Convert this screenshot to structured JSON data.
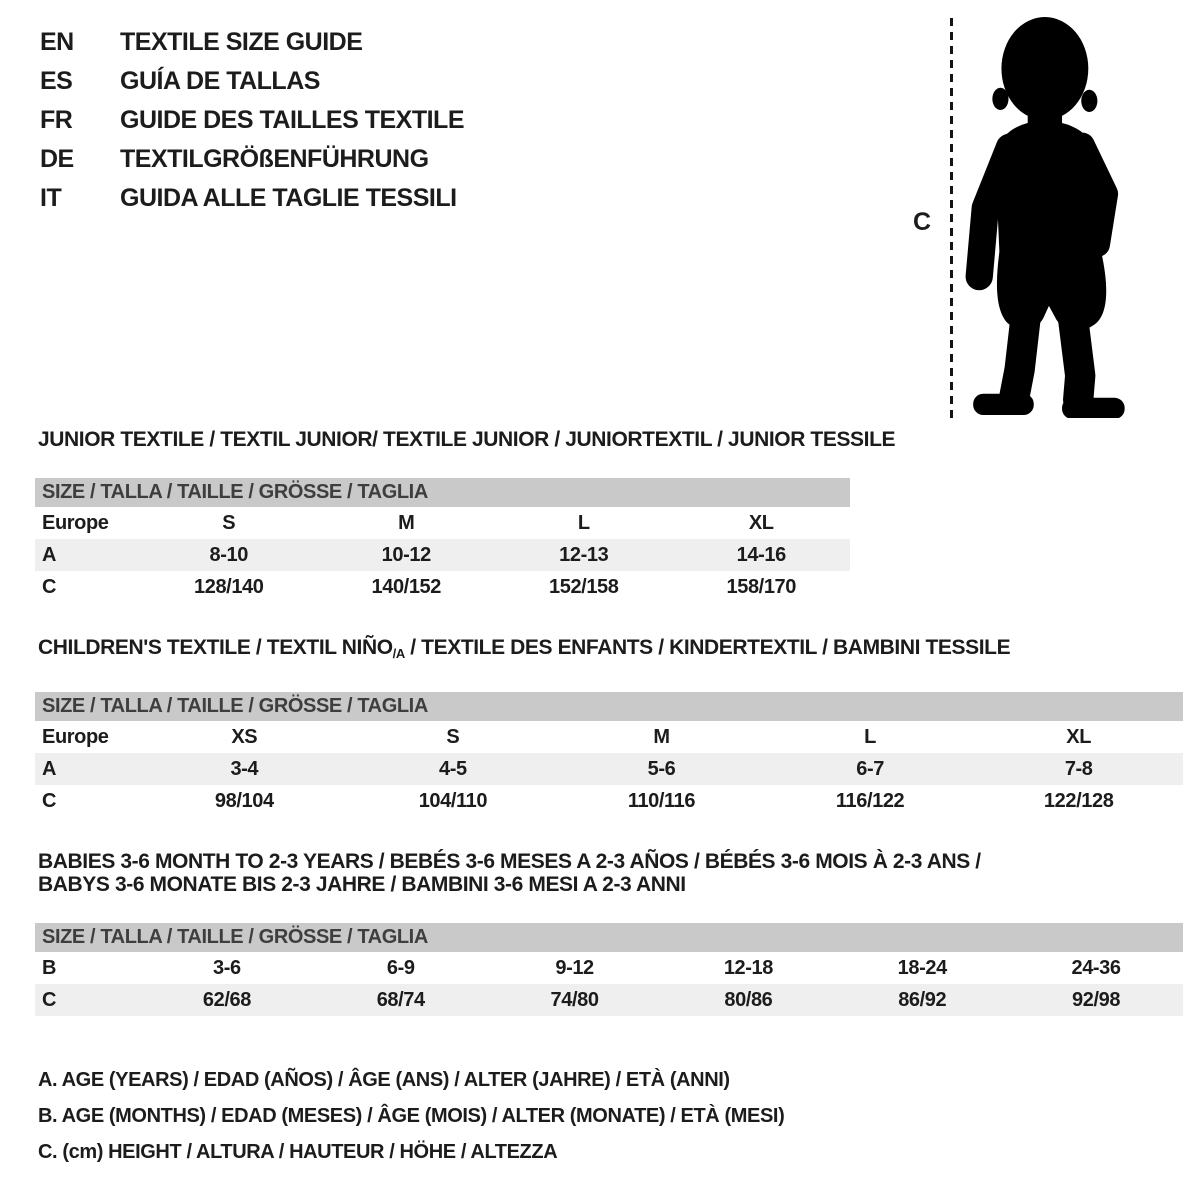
{
  "colors": {
    "background": "#ffffff",
    "text": "#1c1c1c",
    "size_bar_bg": "#c9c9c9",
    "shaded_row_bg": "#efefef",
    "silhouette": "#000000"
  },
  "languages": [
    {
      "code": "EN",
      "label": "TEXTILE SIZE GUIDE"
    },
    {
      "code": "ES",
      "label": "GUÍA DE TALLAS"
    },
    {
      "code": "FR",
      "label": "GUIDE DES TAILLES TEXTILE"
    },
    {
      "code": "DE",
      "label": "TEXTILGRÖßENFÜHRUNG"
    },
    {
      "code": "IT",
      "label": "GUIDA ALLE TAGLIE TESSILI"
    }
  ],
  "figure": {
    "measure_label": "C",
    "silhouette": "toddler-silhouette"
  },
  "sections": [
    {
      "title_lines": [
        [
          {
            "t": "JUNIOR TEXTILE / TEXTIL JUNIOR/ TEXTILE JUNIOR / JUNIORTEXTIL / JUNIOR TESSILE",
            "sub": false
          }
        ]
      ],
      "size_header": "SIZE / TALLA / TAILLE / GRÖSSE / TAGLIA",
      "narrow": true,
      "rows": [
        {
          "label": "Europe",
          "values": [
            "S",
            "M",
            "L",
            "XL"
          ],
          "shaded": false
        },
        {
          "label": "A",
          "values": [
            "8-10",
            "10-12",
            "12-13",
            "14-16"
          ],
          "shaded": true
        },
        {
          "label": "C",
          "values": [
            "128/140",
            "140/152",
            "152/158",
            "158/170"
          ],
          "shaded": false
        }
      ]
    },
    {
      "title_lines": [
        [
          {
            "t": "CHILDREN'S TEXTILE / TEXTIL NIÑO",
            "sub": false
          },
          {
            "t": "/A",
            "sub": true
          },
          {
            "t": " / TEXTILE DES ENFANTS / KINDERTEXTIL / BAMBINI TESSILE",
            "sub": false
          }
        ]
      ],
      "size_header": "SIZE / TALLA / TAILLE / GRÖSSE / TAGLIA",
      "narrow": false,
      "rows": [
        {
          "label": "Europe",
          "values": [
            "XS",
            "S",
            "M",
            "L",
            "XL"
          ],
          "shaded": false
        },
        {
          "label": "A",
          "values": [
            "3-4",
            "4-5",
            "5-6",
            "6-7",
            "7-8"
          ],
          "shaded": true
        },
        {
          "label": "C",
          "values": [
            "98/104",
            "104/110",
            "110/116",
            "116/122",
            "122/128"
          ],
          "shaded": false
        }
      ]
    },
    {
      "title_lines": [
        [
          {
            "t": "BABIES 3-6 MONTH TO 2-3 YEARS / BEBÉS 3-6 MESES A 2-3 AÑOS / BÉBÉS 3-6 MOIS À 2-3 ANS /",
            "sub": false
          }
        ],
        [
          {
            "t": "BABYS 3-6 MONATE BIS 2-3 JAHRE / BAMBINI 3-6 MESI A 2-3 ANNI",
            "sub": false
          }
        ]
      ],
      "size_header": "SIZE / TALLA / TAILLE / GRÖSSE / TAGLIA",
      "narrow": false,
      "rows": [
        {
          "label": "B",
          "values": [
            "3-6",
            "6-9",
            "9-12",
            "12-18",
            "18-24",
            "24-36"
          ],
          "shaded": false
        },
        {
          "label": "C",
          "values": [
            "62/68",
            "68/74",
            "74/80",
            "80/86",
            "86/92",
            "92/98"
          ],
          "shaded": true
        }
      ]
    }
  ],
  "legend": {
    "items": [
      "A. AGE (YEARS) / EDAD (AÑOS) / ÂGE (ANS) / ALTER (JAHRE) / ETÀ (ANNI)",
      "B. AGE (MONTHS) / EDAD (MESES) / ÂGE (MOIS) / ALTER (MONATE) / ETÀ (MESI)",
      "C. (cm) HEIGHT / ALTURA / HAUTEUR / HÖHE / ALTEZZA"
    ]
  }
}
